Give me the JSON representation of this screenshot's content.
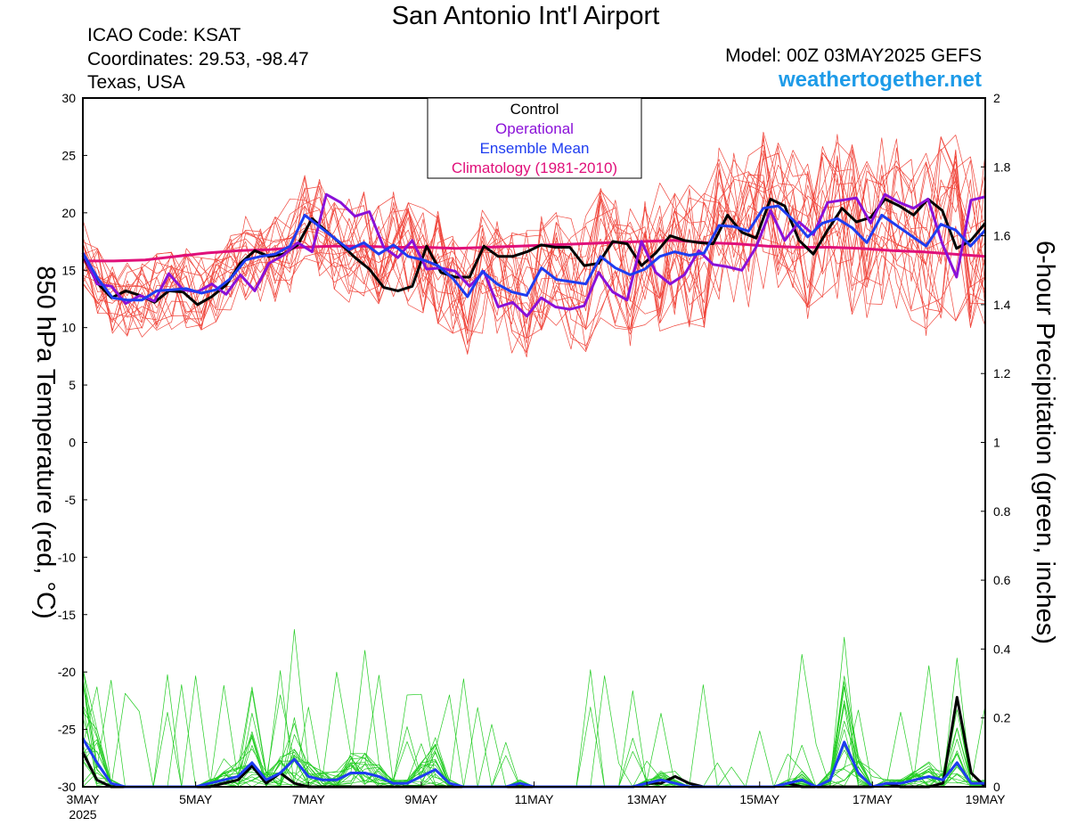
{
  "header": {
    "title": "San Antonio Int'l Airport",
    "icao": "ICAO Code: KSAT",
    "coordinates": "Coordinates: 29.53, -98.47",
    "region": "Texas, USA",
    "model": "Model: 00Z 03MAY2025 GEFS",
    "site": "weathertogether.net"
  },
  "chart_data": {
    "type": "line",
    "x_unit": "days after 00Z 03MAY2025",
    "xlim": [
      0,
      16
    ],
    "x_ticks": [
      {
        "x": 0,
        "label": "3MAY",
        "sublabel": "2025"
      },
      {
        "x": 2,
        "label": "5MAY"
      },
      {
        "x": 4,
        "label": "7MAY"
      },
      {
        "x": 6,
        "label": "9MAY"
      },
      {
        "x": 8,
        "label": "11MAY"
      },
      {
        "x": 10,
        "label": "13MAY"
      },
      {
        "x": 12,
        "label": "15MAY"
      },
      {
        "x": 14,
        "label": "17MAY"
      },
      {
        "x": 16,
        "label": "19MAY"
      }
    ],
    "left_axis": {
      "label": "850 hPa Temperature (red, °C)",
      "ylim": [
        -30,
        30
      ],
      "ticks": [
        30,
        25,
        20,
        15,
        10,
        5,
        0,
        -5,
        -10,
        -15,
        -20,
        -25,
        -30
      ]
    },
    "right_axis": {
      "label": "6-hour Precipitation (green, inches)",
      "ylim": [
        0,
        2
      ],
      "ticks": [
        "2",
        "1.8",
        "1.6",
        "1.4",
        "1.2",
        "1",
        "0.8",
        "0.6",
        "0.4",
        "0.2",
        "0"
      ]
    },
    "legend": {
      "position": "top-center",
      "entries": [
        {
          "label": "Control",
          "color": "#000000"
        },
        {
          "label": "Operational",
          "color": "#8a10d8"
        },
        {
          "label": "Ensemble Mean",
          "color": "#1e3cf0"
        },
        {
          "label": "Climatology (1981-2010)",
          "color": "#e0107a"
        }
      ]
    },
    "colors": {
      "members_temp": "#f0463c",
      "members_precip": "#22cc22",
      "control": "#000000",
      "operational": "#8a10d8",
      "mean": "#1e3cf0",
      "climatology": "#e0107a"
    },
    "series": {
      "control_temp": [
        16.3,
        13.9,
        12.6,
        13.2,
        12.8,
        12.2,
        13.2,
        13.1,
        12.0,
        12.7,
        13.7,
        15.6,
        16.7,
        16.2,
        16.4,
        17.2,
        19.5,
        18.4,
        17.3,
        16.1,
        15.1,
        13.5,
        13.2,
        13.6,
        17.1,
        14.8,
        14.4,
        14.4,
        17.1,
        16.2,
        16.2,
        16.6,
        17.2,
        17.0,
        17.0,
        15.4,
        15.6,
        17.5,
        17.3,
        15.4,
        16.5,
        18.0,
        17.6,
        17.4,
        17.3,
        19.8,
        18.3,
        17.8,
        21.2,
        20.6,
        17.6,
        16.4,
        18.5,
        20.4,
        19.2,
        19.6,
        21.2,
        20.6,
        19.8,
        21.2,
        20.2,
        16.9,
        17.6,
        19.1
      ],
      "operational_temp": [
        16.5,
        13.8,
        13.6,
        12.1,
        12.8,
        12.3,
        14.7,
        13.3,
        13.1,
        13.8,
        12.9,
        14.6,
        13.2,
        15.6,
        16.3,
        17.4,
        16.6,
        21.6,
        20.9,
        19.7,
        20.1,
        17.0,
        16.1,
        17.6,
        15.1,
        15.2,
        14.9,
        13.6,
        14.9,
        11.8,
        12.2,
        11.0,
        12.6,
        11.8,
        11.6,
        11.9,
        14.8,
        13.1,
        12.4,
        17.5,
        14.8,
        13.8,
        14.6,
        16.7,
        15.5,
        15.3,
        15.0,
        17.0,
        20.2,
        17.6,
        19.2,
        18.1,
        20.9,
        21.1,
        21.3,
        19.1,
        21.6,
        20.9,
        20.4,
        21.2,
        17.3,
        14.4,
        21.1,
        21.4
      ],
      "mean_temp": [
        16.5,
        14.3,
        12.6,
        12.4,
        12.4,
        13.2,
        13.3,
        13.4,
        13.0,
        13.3,
        14.3,
        15.9,
        16.2,
        16.4,
        17.1,
        19.8,
        18.8,
        17.8,
        16.8,
        17.4,
        16.4,
        17.2,
        16.2,
        15.9,
        15.4,
        14.3,
        12.7,
        14.9,
        13.8,
        13.1,
        12.8,
        15.2,
        14.2,
        14.0,
        13.8,
        16.2,
        15.2,
        14.6,
        15.1,
        16.2,
        16.6,
        16.3,
        16.5,
        18.9,
        18.8,
        18.4,
        20.4,
        20.6,
        19.4,
        17.9,
        19.1,
        19.5,
        18.7,
        17.4,
        19.8,
        18.9,
        18.0,
        17.1,
        19.0,
        18.5,
        17.1,
        18.5
      ],
      "climatology_temp": [
        15.8,
        15.8,
        15.9,
        16.2,
        16.5,
        16.7,
        16.8,
        17.0,
        17.1,
        17.1,
        17.0,
        17.0,
        16.9,
        17.0,
        17.1,
        17.2,
        17.3,
        17.4,
        17.5,
        17.6,
        17.4,
        17.3,
        17.1,
        17.0,
        17.0,
        16.9,
        16.7,
        16.6,
        16.4,
        16.2
      ],
      "control_precip": [
        0.1,
        0.02,
        0.0,
        0.0,
        0.0,
        0.0,
        0.0,
        0.0,
        0.0,
        0.0,
        0.01,
        0.02,
        0.06,
        0.01,
        0.04,
        0.01,
        0.0,
        0.0,
        0.0,
        0.0,
        0.0,
        0.0,
        0.0,
        0.0,
        0.0,
        0.0,
        0.0,
        0.0,
        0.0,
        0.0,
        0.0,
        0.0,
        0.0,
        0.0,
        0.0,
        0.0,
        0.0,
        0.0,
        0.0,
        0.0,
        0.01,
        0.01,
        0.03,
        0.01,
        0.0,
        0.0,
        0.0,
        0.0,
        0.0,
        0.0,
        0.01,
        0.0,
        0.0,
        0.0,
        0.0,
        0.0,
        0.0,
        0.01,
        0.0,
        0.0,
        0.0,
        0.01,
        0.26,
        0.04,
        0.0
      ],
      "mean_precip": [
        0.14,
        0.07,
        0.01,
        0.0,
        0.0,
        0.0,
        0.0,
        0.0,
        0.0,
        0.01,
        0.02,
        0.03,
        0.07,
        0.02,
        0.04,
        0.08,
        0.03,
        0.02,
        0.02,
        0.04,
        0.04,
        0.03,
        0.01,
        0.01,
        0.03,
        0.05,
        0.01,
        0.0,
        0.0,
        0.0,
        0.0,
        0.01,
        0.0,
        0.0,
        0.0,
        0.0,
        0.0,
        0.0,
        0.0,
        0.0,
        0.01,
        0.02,
        0.01,
        0.0,
        0.0,
        0.0,
        0.0,
        0.0,
        0.0,
        0.0,
        0.01,
        0.02,
        0.0,
        0.02,
        0.13,
        0.04,
        0.0,
        0.01,
        0.01,
        0.02,
        0.03,
        0.02,
        0.07,
        0.01,
        0.01
      ]
    }
  }
}
